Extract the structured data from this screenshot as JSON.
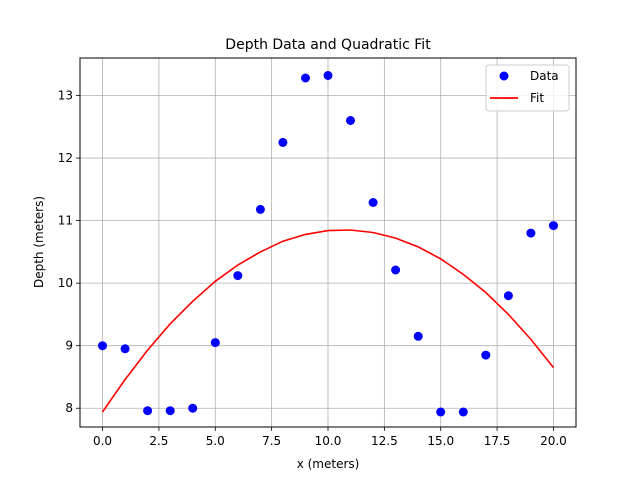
{
  "chart_data": {
    "type": "scatter",
    "title": "Depth Data and Quadratic Fit",
    "xlabel": "x (meters)",
    "ylabel": "Depth (meters)",
    "xlim": [
      -1.0,
      21.0
    ],
    "ylim": [
      7.7,
      13.6
    ],
    "x_ticks": [
      0.0,
      2.5,
      5.0,
      7.5,
      10.0,
      12.5,
      15.0,
      17.5,
      20.0
    ],
    "x_tick_labels": [
      "0.0",
      "2.5",
      "5.0",
      "7.5",
      "10.0",
      "12.5",
      "15.0",
      "17.5",
      "20.0"
    ],
    "y_ticks": [
      8,
      9,
      10,
      11,
      12,
      13
    ],
    "y_tick_labels": [
      "8",
      "9",
      "10",
      "11",
      "12",
      "13"
    ],
    "grid": true,
    "legend_position": "top-right",
    "series": [
      {
        "name": "Data",
        "kind": "scatter",
        "color": "#0000ff",
        "x": [
          0,
          1,
          2,
          3,
          4,
          5,
          6,
          7,
          8,
          9,
          10,
          11,
          12,
          13,
          14,
          15,
          16,
          17,
          18,
          19,
          20
        ],
        "y": [
          9.0,
          8.95,
          7.96,
          7.96,
          8.0,
          9.05,
          10.12,
          11.18,
          12.25,
          13.28,
          13.32,
          12.6,
          11.29,
          10.21,
          9.15,
          7.94,
          7.94,
          8.85,
          9.8,
          10.8,
          10.92
        ]
      },
      {
        "name": "Fit",
        "kind": "line",
        "color": "#ff0000",
        "x": [
          0,
          1,
          2,
          3,
          4,
          5,
          6,
          7,
          8,
          9,
          10,
          11,
          12,
          13,
          14,
          15,
          16,
          17,
          18,
          19,
          20
        ],
        "y": [
          7.94,
          8.46,
          8.93,
          9.35,
          9.71,
          10.03,
          10.29,
          10.5,
          10.67,
          10.78,
          10.84,
          10.85,
          10.81,
          10.72,
          10.58,
          10.39,
          10.14,
          9.85,
          9.5,
          9.1,
          8.65
        ]
      }
    ]
  }
}
